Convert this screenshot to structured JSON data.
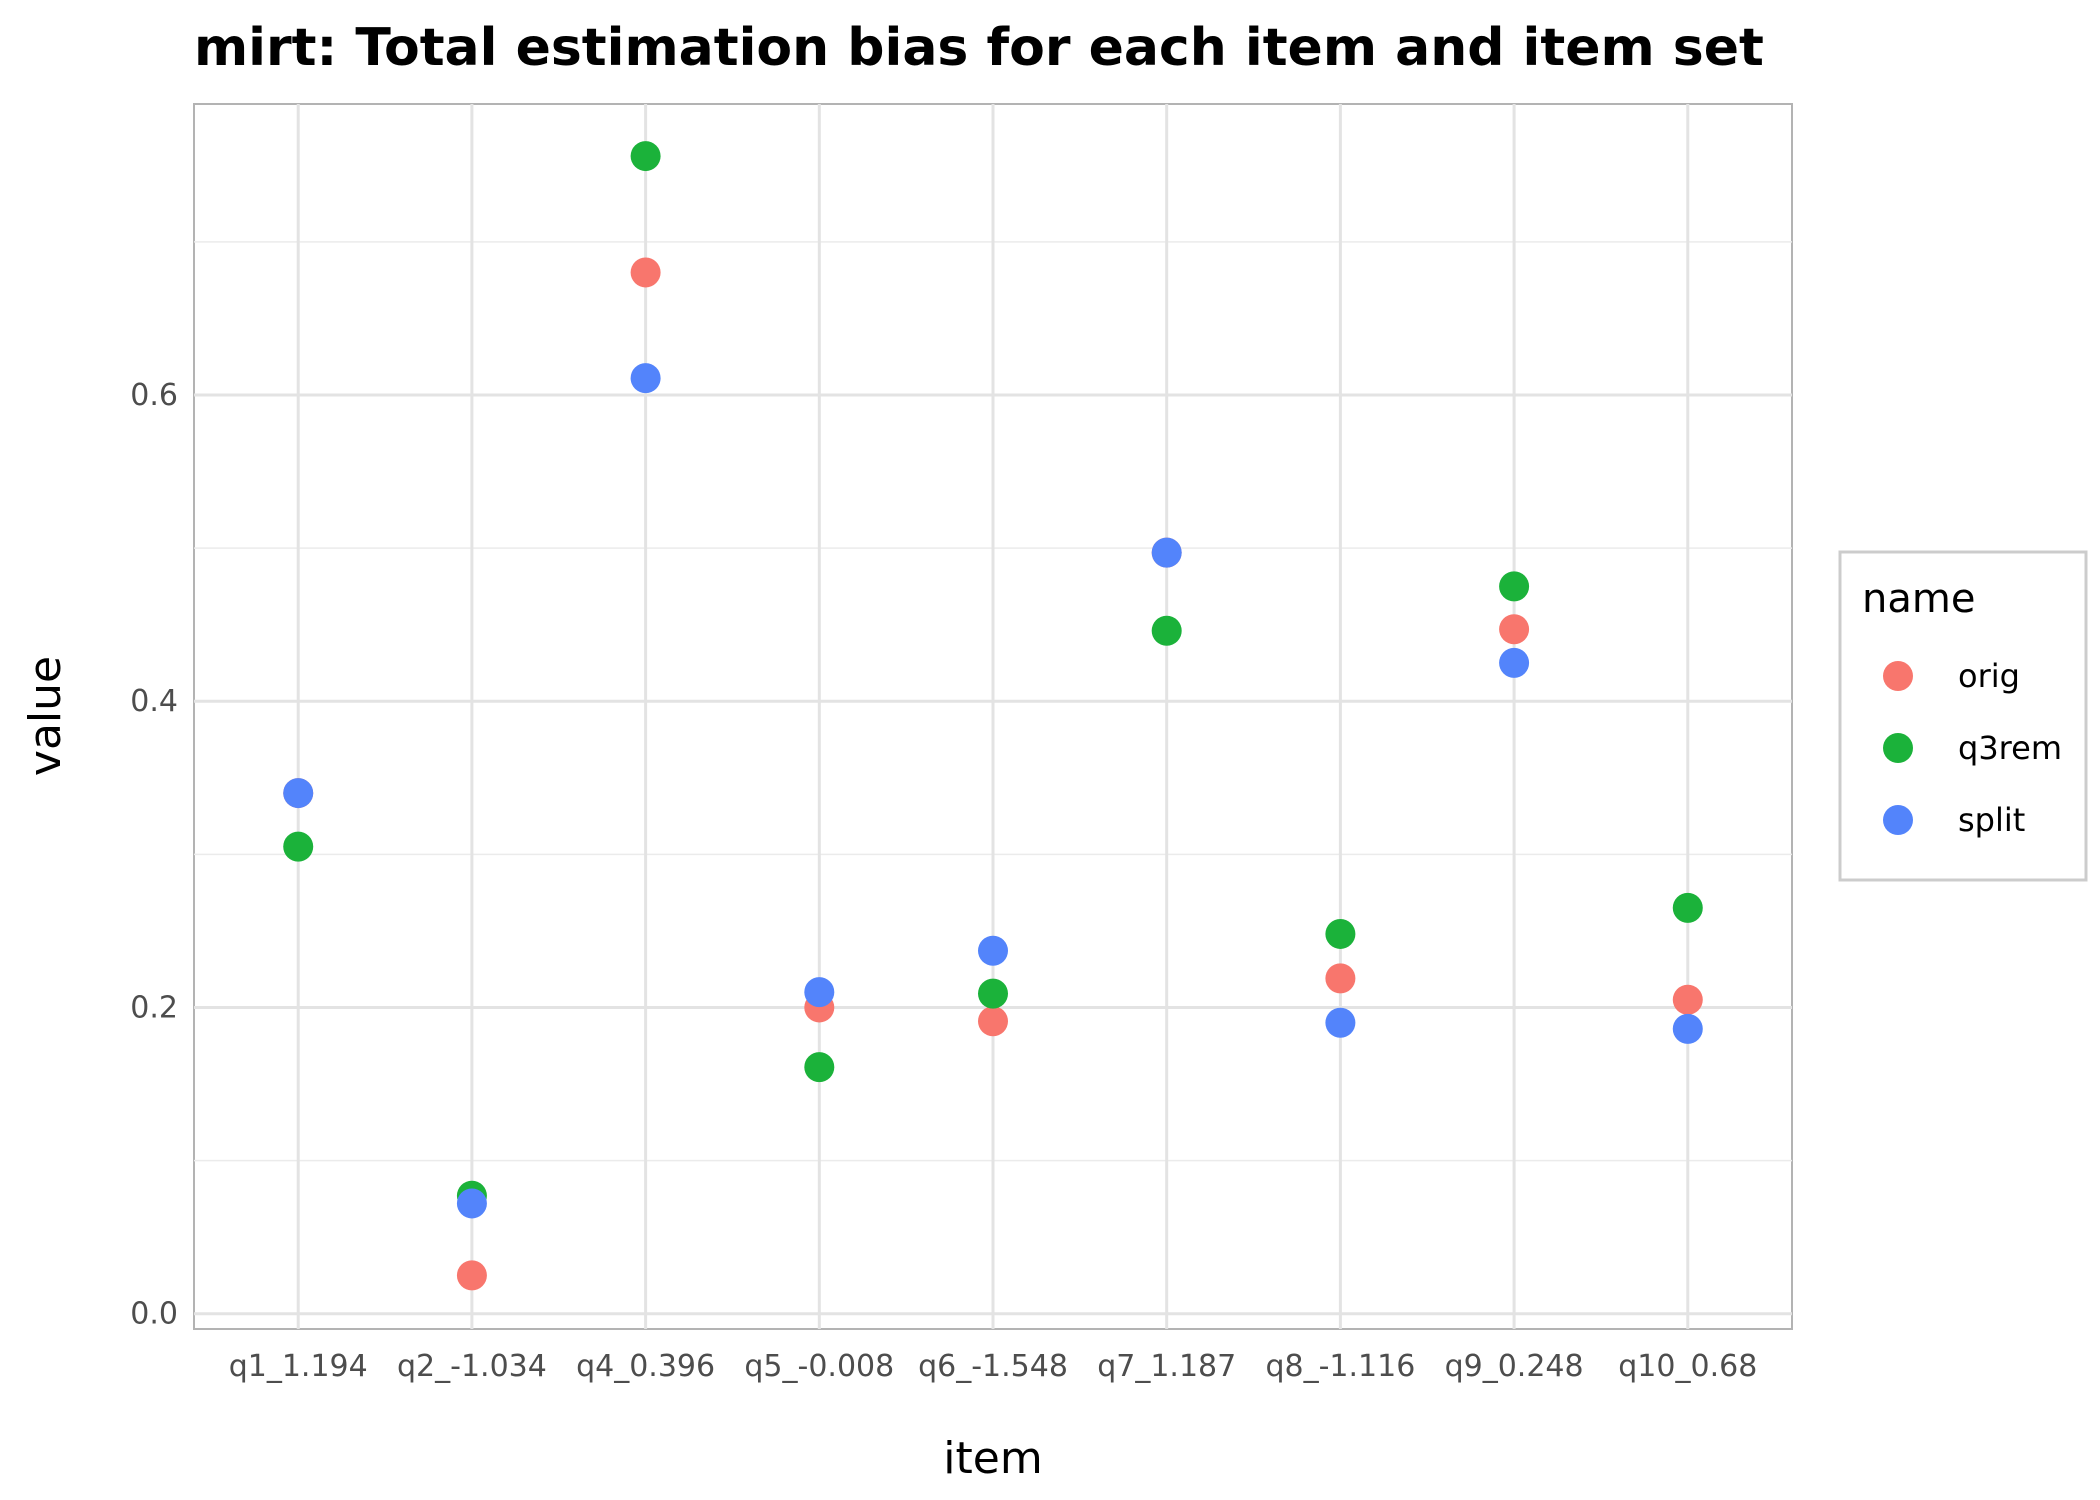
{
  "chart_data": {
    "type": "scatter",
    "title": "mirt: Total estimation bias for each item and item set",
    "xlabel": "item",
    "ylabel": "value",
    "categories": [
      "q1_1.194",
      "q2_-1.034",
      "q4_0.396",
      "q5_-0.008",
      "q6_-1.548",
      "q7_1.187",
      "q8_-1.116",
      "q9_0.248",
      "q10_0.68"
    ],
    "ylim": [
      -0.01,
      0.79
    ],
    "yticks": [
      0.0,
      0.2,
      0.4,
      0.6
    ],
    "ytick_labels": [
      "0.0",
      "0.2",
      "0.4",
      "0.6"
    ],
    "grid": true,
    "legend": {
      "title": "name",
      "placement": "right"
    },
    "series": [
      {
        "name": "orig",
        "color": "#F8766D",
        "values": [
          0.34,
          0.025,
          0.68,
          0.2,
          0.191,
          0.497,
          0.219,
          0.447,
          0.205
        ]
      },
      {
        "name": "q3rem",
        "color": "#1BB23A",
        "values": [
          0.305,
          0.077,
          0.756,
          0.161,
          0.209,
          0.446,
          0.248,
          0.475,
          0.265
        ]
      },
      {
        "name": "split",
        "color": "#5384FB",
        "values": [
          0.34,
          0.072,
          0.611,
          0.21,
          0.237,
          0.497,
          0.19,
          0.425,
          0.186
        ]
      }
    ]
  }
}
